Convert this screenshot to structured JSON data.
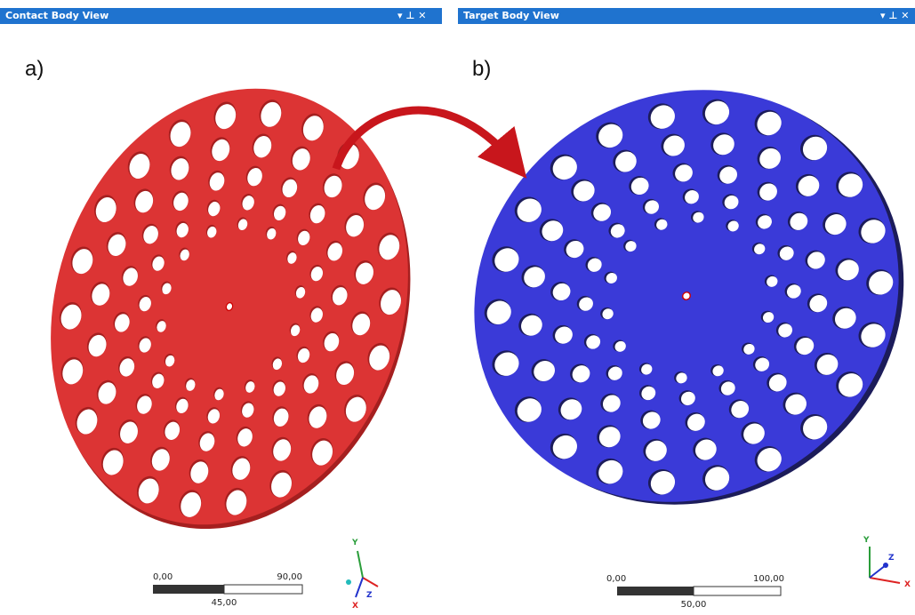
{
  "panels": [
    {
      "title": "Contact Body View",
      "label": "a)",
      "scale": {
        "start": "0,00",
        "end": "90,00",
        "mid": "45,00"
      },
      "axes": {
        "y": "Y",
        "x": "X",
        "z": "Z"
      }
    },
    {
      "title": "Target Body View",
      "label": "b)",
      "scale": {
        "start": "0,00",
        "end": "100,00",
        "mid": "50,00"
      },
      "axes": {
        "y": "Y",
        "x": "X",
        "z": "Z"
      }
    }
  ]
}
